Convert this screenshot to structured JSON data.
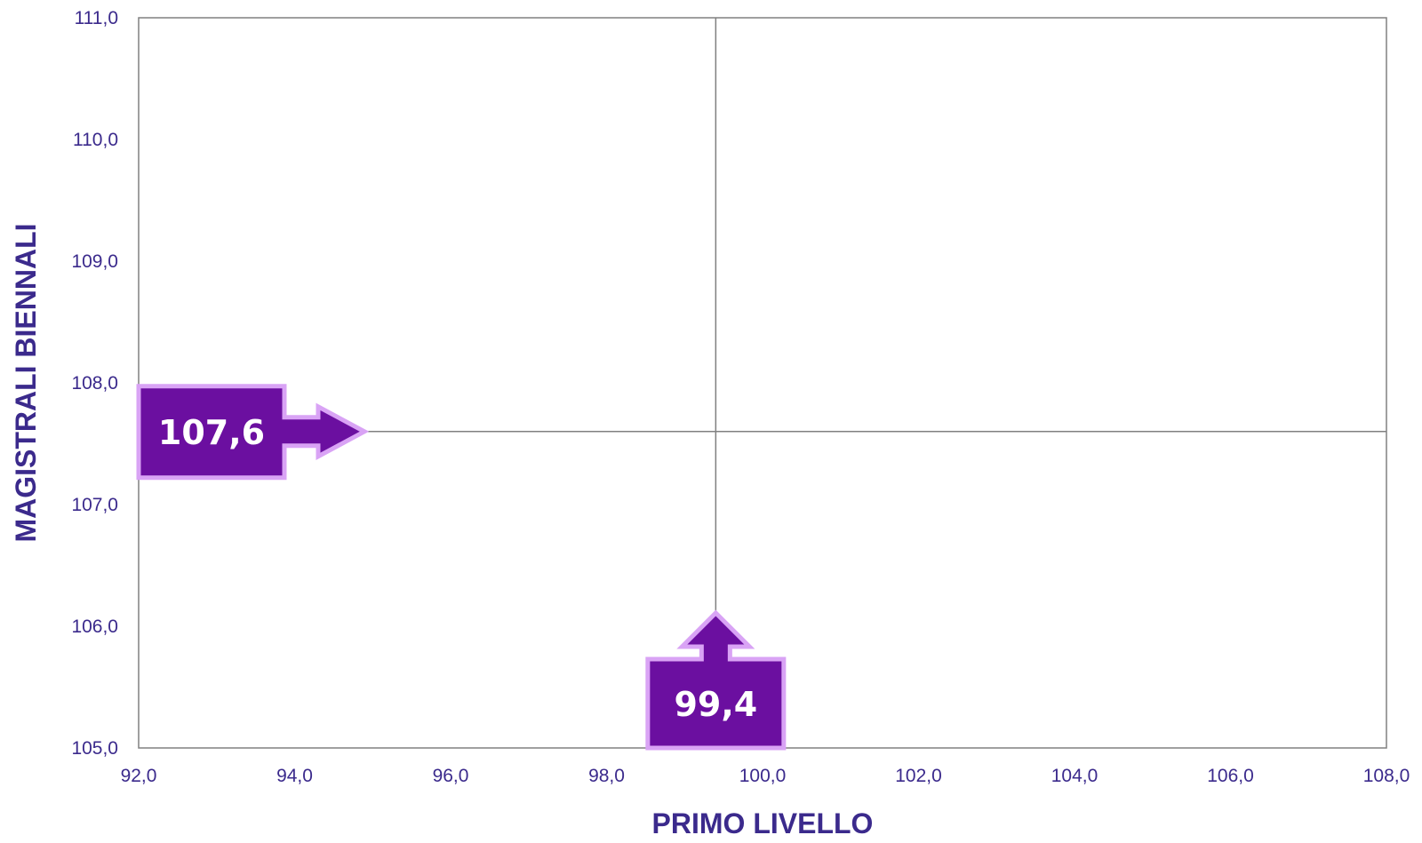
{
  "chart_data": {
    "type": "scatter",
    "xlabel": "PRIMO LIVELLO",
    "ylabel": "MAGISTRALI BIENNALI",
    "xlim": [
      92,
      108
    ],
    "ylim": [
      105,
      111
    ],
    "x_ticks": [
      "92,0",
      "94,0",
      "96,0",
      "98,0",
      "100,0",
      "102,0",
      "104,0",
      "106,0",
      "108,0"
    ],
    "y_ticks": [
      "105,0",
      "106,0",
      "107,0",
      "108,0",
      "109,0",
      "110,0",
      "111,0"
    ],
    "grid": false,
    "reference_lines": {
      "x": 99.4,
      "y": 107.6
    },
    "callouts": [
      {
        "axis": "x",
        "value": 99.4,
        "label": "99,4"
      },
      {
        "axis": "y",
        "value": 107.6,
        "label": "107,6"
      }
    ],
    "colors": {
      "callout_fill": "#6b0fa0",
      "callout_border": "#d9a3f5",
      "text": "#3b2a8c",
      "lines": "#808080"
    }
  }
}
